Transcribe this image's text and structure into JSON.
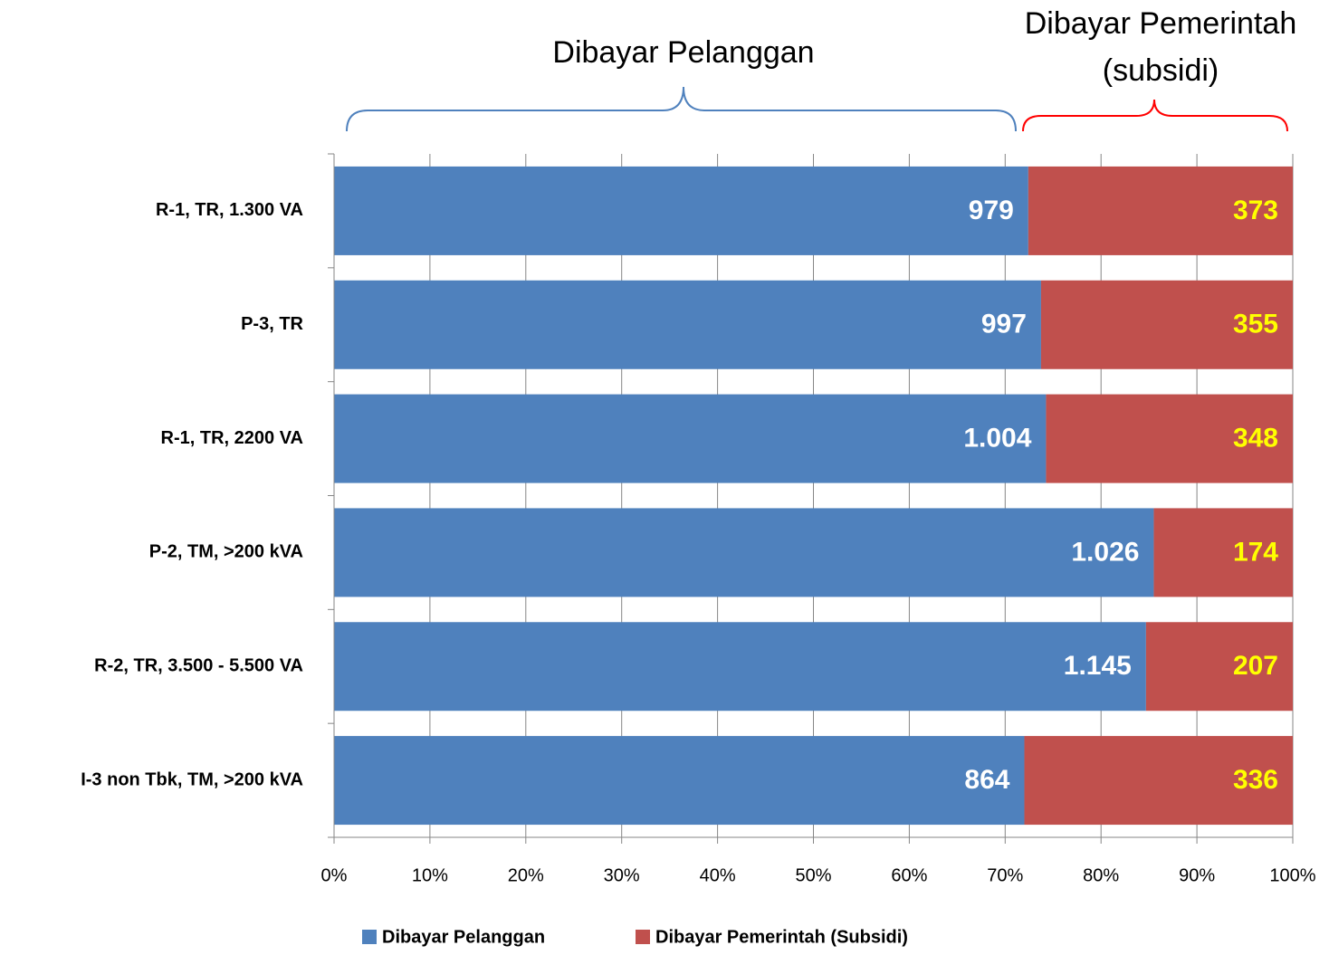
{
  "chart_data": {
    "type": "bar",
    "orientation": "horizontal",
    "stacking": "percent",
    "annotations": [
      {
        "lines": [
          "Dibayar Pelanggan"
        ],
        "color": "#4f81bd"
      },
      {
        "lines": [
          "Dibayar Pemerintah",
          "(subsidi)"
        ],
        "color": "#ff0000"
      }
    ],
    "categories": [
      "R-1, TR, 1.300 VA",
      "P-3, TR",
      "R-1, TR, 2200 VA",
      "P-2, TM, >200 kVA",
      "R-2, TR, 3.500 - 5.500 VA",
      "I-3 non Tbk, TM, >200 kVA"
    ],
    "series": [
      {
        "name": "Dibayar Pelanggan",
        "color": "#4f81bd",
        "label_color": "#ffffff",
        "values": [
          979,
          997,
          1004,
          1026,
          1145,
          864
        ],
        "value_labels": [
          "979",
          "997",
          "1.004",
          "1.026",
          "1.145",
          "864"
        ]
      },
      {
        "name": "Dibayar Pemerintah (Subsidi)",
        "color": "#c0504d",
        "label_color": "#ffff00",
        "values": [
          373,
          355,
          348,
          174,
          207,
          336
        ]
      }
    ],
    "xlim": [
      0,
      100
    ],
    "xticks": [
      {
        "value": 0,
        "label": "0%"
      },
      {
        "value": 10,
        "label": "10%"
      },
      {
        "value": 20,
        "label": "20%"
      },
      {
        "value": 30,
        "label": "30%"
      },
      {
        "value": 40,
        "label": "40%"
      },
      {
        "value": 50,
        "label": "50%"
      },
      {
        "value": 60,
        "label": "60%"
      },
      {
        "value": 70,
        "label": "70%"
      },
      {
        "value": 80,
        "label": "80%"
      },
      {
        "value": 90,
        "label": "90%"
      },
      {
        "value": 100,
        "label": "100%"
      }
    ],
    "grid": true,
    "legend": "bottom"
  }
}
